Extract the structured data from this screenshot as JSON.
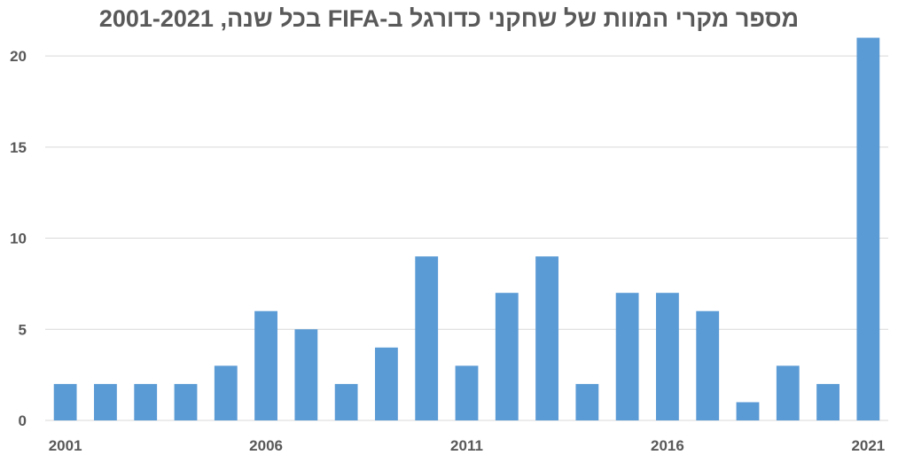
{
  "chart_data": {
    "type": "bar",
    "title": "מספר מקרי המוות של שחקני כדורגל ב-FIFA בכל שנה, 2001-2021",
    "categories": [
      "2001",
      "2002",
      "2003",
      "2004",
      "2005",
      "2006",
      "2007",
      "2008",
      "2009",
      "2010",
      "2011",
      "2012",
      "2013",
      "2014",
      "2015",
      "2016",
      "2017",
      "2018",
      "2019",
      "2020",
      "2021"
    ],
    "x_tick_labels": [
      "2001",
      "2006",
      "2011",
      "2016",
      "2021"
    ],
    "values": [
      2,
      2,
      2,
      2,
      3,
      6,
      5,
      2,
      4,
      9,
      3,
      7,
      9,
      2,
      7,
      7,
      6,
      1,
      3,
      2,
      21
    ],
    "y_ticks": [
      0,
      5,
      10,
      15,
      20
    ],
    "ylim": [
      0,
      22
    ],
    "grid": true,
    "legend": "none",
    "bar_color": "#5B9BD5",
    "grid_color": "#D9D9D9",
    "text_color": "#595959"
  }
}
